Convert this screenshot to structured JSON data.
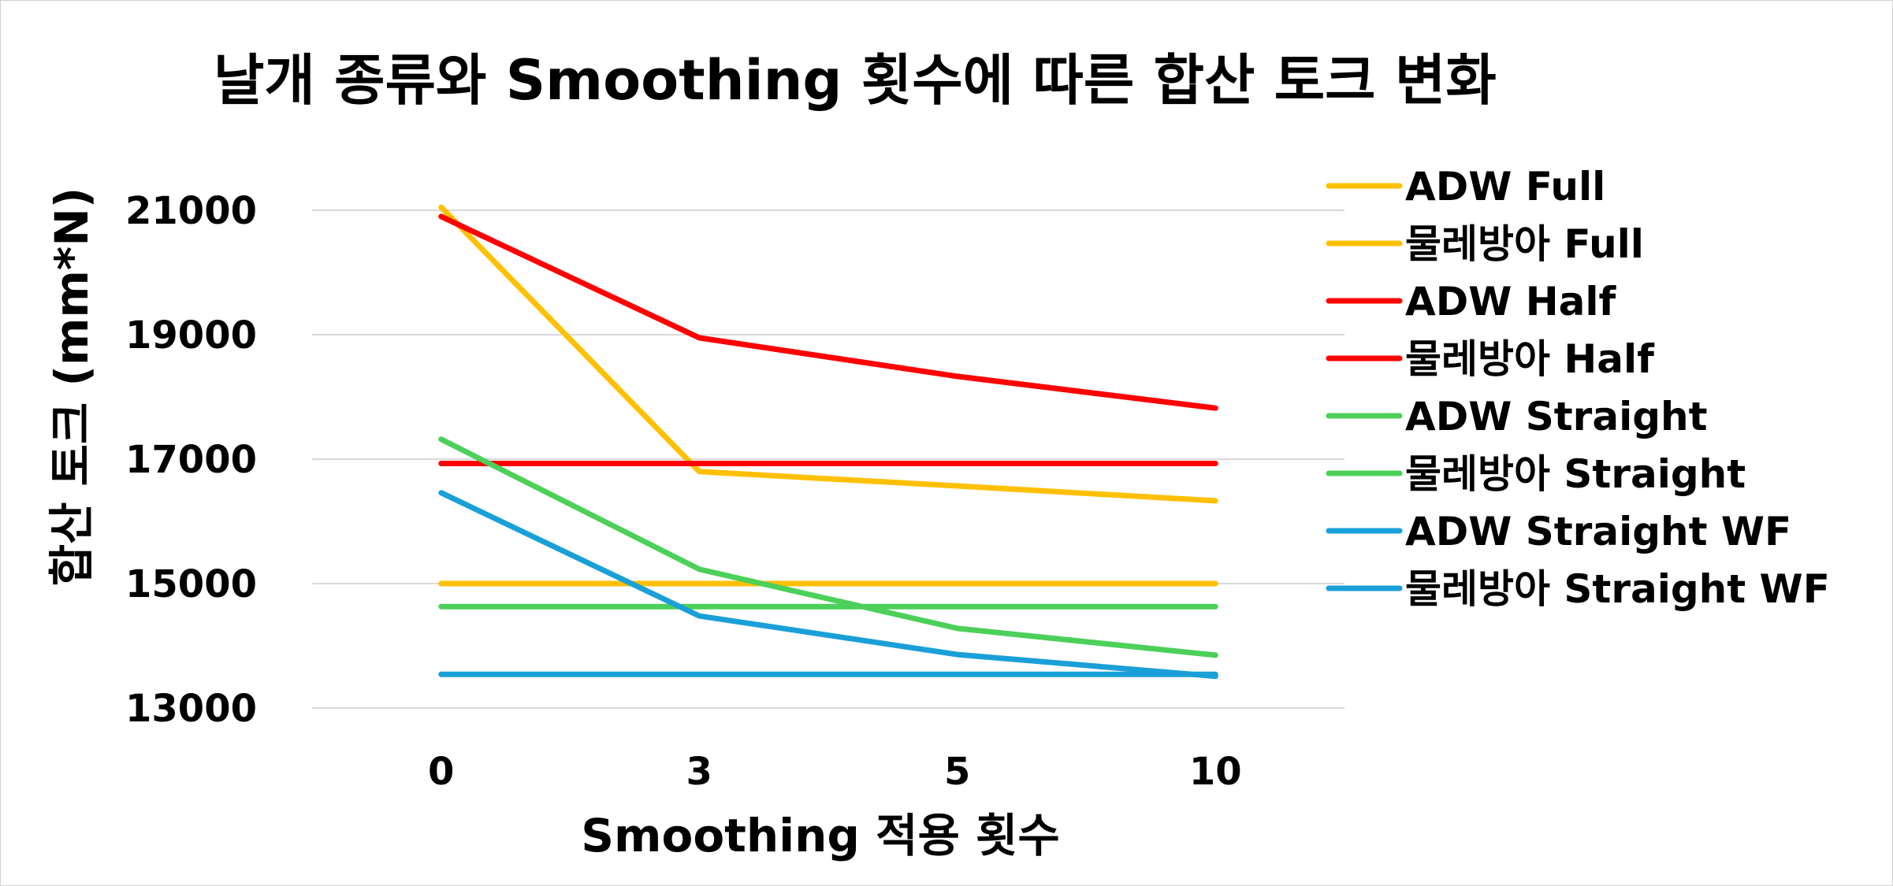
{
  "chart_data": {
    "type": "line",
    "title": "날개 종류와 Smoothing 횟수에 따른 합산 토크 변화",
    "xlabel": "Smoothing 적용 횟수",
    "ylabel": "합산 토크 (mm*N)",
    "categories": [
      "0",
      "3",
      "5",
      "10"
    ],
    "yticks": [
      13000,
      15000,
      17000,
      19000,
      21000
    ],
    "ylim": [
      12200,
      21500
    ],
    "grid": true,
    "legend_position": "right",
    "series": [
      {
        "name": "ADW Full",
        "color": "#FFC000",
        "values": [
          21050,
          16800,
          16570,
          16330
        ]
      },
      {
        "name": "물레방아 Full",
        "color": "#FFC000",
        "values": [
          15000,
          15000,
          15000,
          15000
        ]
      },
      {
        "name": "ADW Half",
        "color": "#FF0000",
        "values": [
          20900,
          18950,
          18330,
          17820
        ]
      },
      {
        "name": "물레방아 Half",
        "color": "#FF0000",
        "values": [
          16930,
          16930,
          16930,
          16930
        ]
      },
      {
        "name": "ADW Straight",
        "color": "#4CD05A",
        "values": [
          17320,
          15230,
          14280,
          13850
        ]
      },
      {
        "name": "물레방아 Straight",
        "color": "#4CD05A",
        "values": [
          14630,
          14630,
          14630,
          14630
        ]
      },
      {
        "name": "ADW Straight WF",
        "color": "#1AA0D8",
        "values": [
          16460,
          14480,
          13860,
          13510
        ]
      },
      {
        "name": "물레방아 Straight WF",
        "color": "#1AA0D8",
        "values": [
          13540,
          13540,
          13540,
          13540
        ]
      }
    ]
  }
}
